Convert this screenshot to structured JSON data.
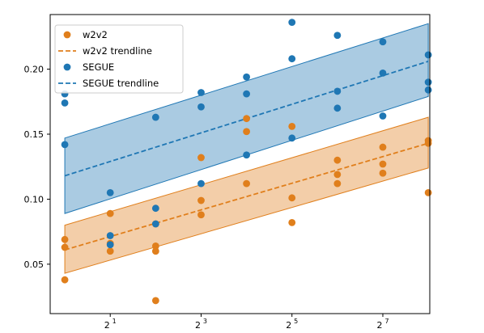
{
  "chart_data": {
    "type": "scatter",
    "title": "",
    "xlabel": "",
    "ylabel": "",
    "x_scale": "log2",
    "x_ticks": [
      {
        "value": 2,
        "label": "2",
        "exp": "1"
      },
      {
        "value": 8,
        "label": "2",
        "exp": "3"
      },
      {
        "value": 32,
        "label": "2",
        "exp": "5"
      },
      {
        "value": 128,
        "label": "2",
        "exp": "7"
      }
    ],
    "y_ticks": [
      0.05,
      0.1,
      0.15,
      0.2
    ],
    "y_tick_labels": [
      "0.05",
      "0.10",
      "0.15",
      "0.20"
    ],
    "xlim": [
      0.8,
      262
    ],
    "ylim": [
      0.012,
      0.242
    ],
    "grid": false,
    "legend_position": "upper-left",
    "series": [
      {
        "name": "w2v2",
        "color": "#e07f1c",
        "points": [
          [
            1,
            0.069
          ],
          [
            1,
            0.063
          ],
          [
            1,
            0.038
          ],
          [
            2,
            0.089
          ],
          [
            2,
            0.066
          ],
          [
            2,
            0.06
          ],
          [
            4,
            0.081
          ],
          [
            4,
            0.064
          ],
          [
            4,
            0.06
          ],
          [
            4,
            0.022
          ],
          [
            8,
            0.132
          ],
          [
            8,
            0.099
          ],
          [
            8,
            0.088
          ],
          [
            16,
            0.162
          ],
          [
            16,
            0.152
          ],
          [
            16,
            0.112
          ],
          [
            32,
            0.156
          ],
          [
            32,
            0.101
          ],
          [
            32,
            0.082
          ],
          [
            64,
            0.13
          ],
          [
            64,
            0.119
          ],
          [
            64,
            0.112
          ],
          [
            128,
            0.14
          ],
          [
            128,
            0.127
          ],
          [
            128,
            0.12
          ],
          [
            256,
            0.145
          ],
          [
            256,
            0.143
          ],
          [
            256,
            0.105
          ]
        ],
        "trendline": {
          "name": "w2v2 trendline",
          "x": [
            1,
            256
          ],
          "y": [
            0.061,
            0.143
          ]
        },
        "band": {
          "x": [
            1,
            256
          ],
          "upper": [
            0.08,
            0.163
          ],
          "lower": [
            0.043,
            0.124
          ]
        }
      },
      {
        "name": "SEGUE",
        "color": "#1f77b4",
        "points": [
          [
            1,
            0.181
          ],
          [
            1,
            0.174
          ],
          [
            1,
            0.142
          ],
          [
            2,
            0.105
          ],
          [
            2,
            0.072
          ],
          [
            2,
            0.065
          ],
          [
            4,
            0.163
          ],
          [
            4,
            0.093
          ],
          [
            4,
            0.081
          ],
          [
            8,
            0.182
          ],
          [
            8,
            0.171
          ],
          [
            8,
            0.112
          ],
          [
            16,
            0.194
          ],
          [
            16,
            0.181
          ],
          [
            16,
            0.134
          ],
          [
            32,
            0.236
          ],
          [
            32,
            0.208
          ],
          [
            32,
            0.147
          ],
          [
            64,
            0.226
          ],
          [
            64,
            0.183
          ],
          [
            64,
            0.17
          ],
          [
            128,
            0.221
          ],
          [
            128,
            0.197
          ],
          [
            128,
            0.164
          ],
          [
            256,
            0.211
          ],
          [
            256,
            0.19
          ],
          [
            256,
            0.184
          ]
        ],
        "trendline": {
          "name": "SEGUE trendline",
          "x": [
            1,
            256
          ],
          "y": [
            0.118,
            0.206
          ]
        },
        "band": {
          "x": [
            1,
            256
          ],
          "upper": [
            0.147,
            0.235
          ],
          "lower": [
            0.089,
            0.179
          ]
        }
      }
    ],
    "legend": [
      {
        "label": "w2v2",
        "kind": "marker",
        "series": 0
      },
      {
        "label": "w2v2 trendline",
        "kind": "dashed",
        "series": 0
      },
      {
        "label": "SEGUE",
        "kind": "marker",
        "series": 1
      },
      {
        "label": "SEGUE trendline",
        "kind": "dashed",
        "series": 1
      }
    ]
  }
}
